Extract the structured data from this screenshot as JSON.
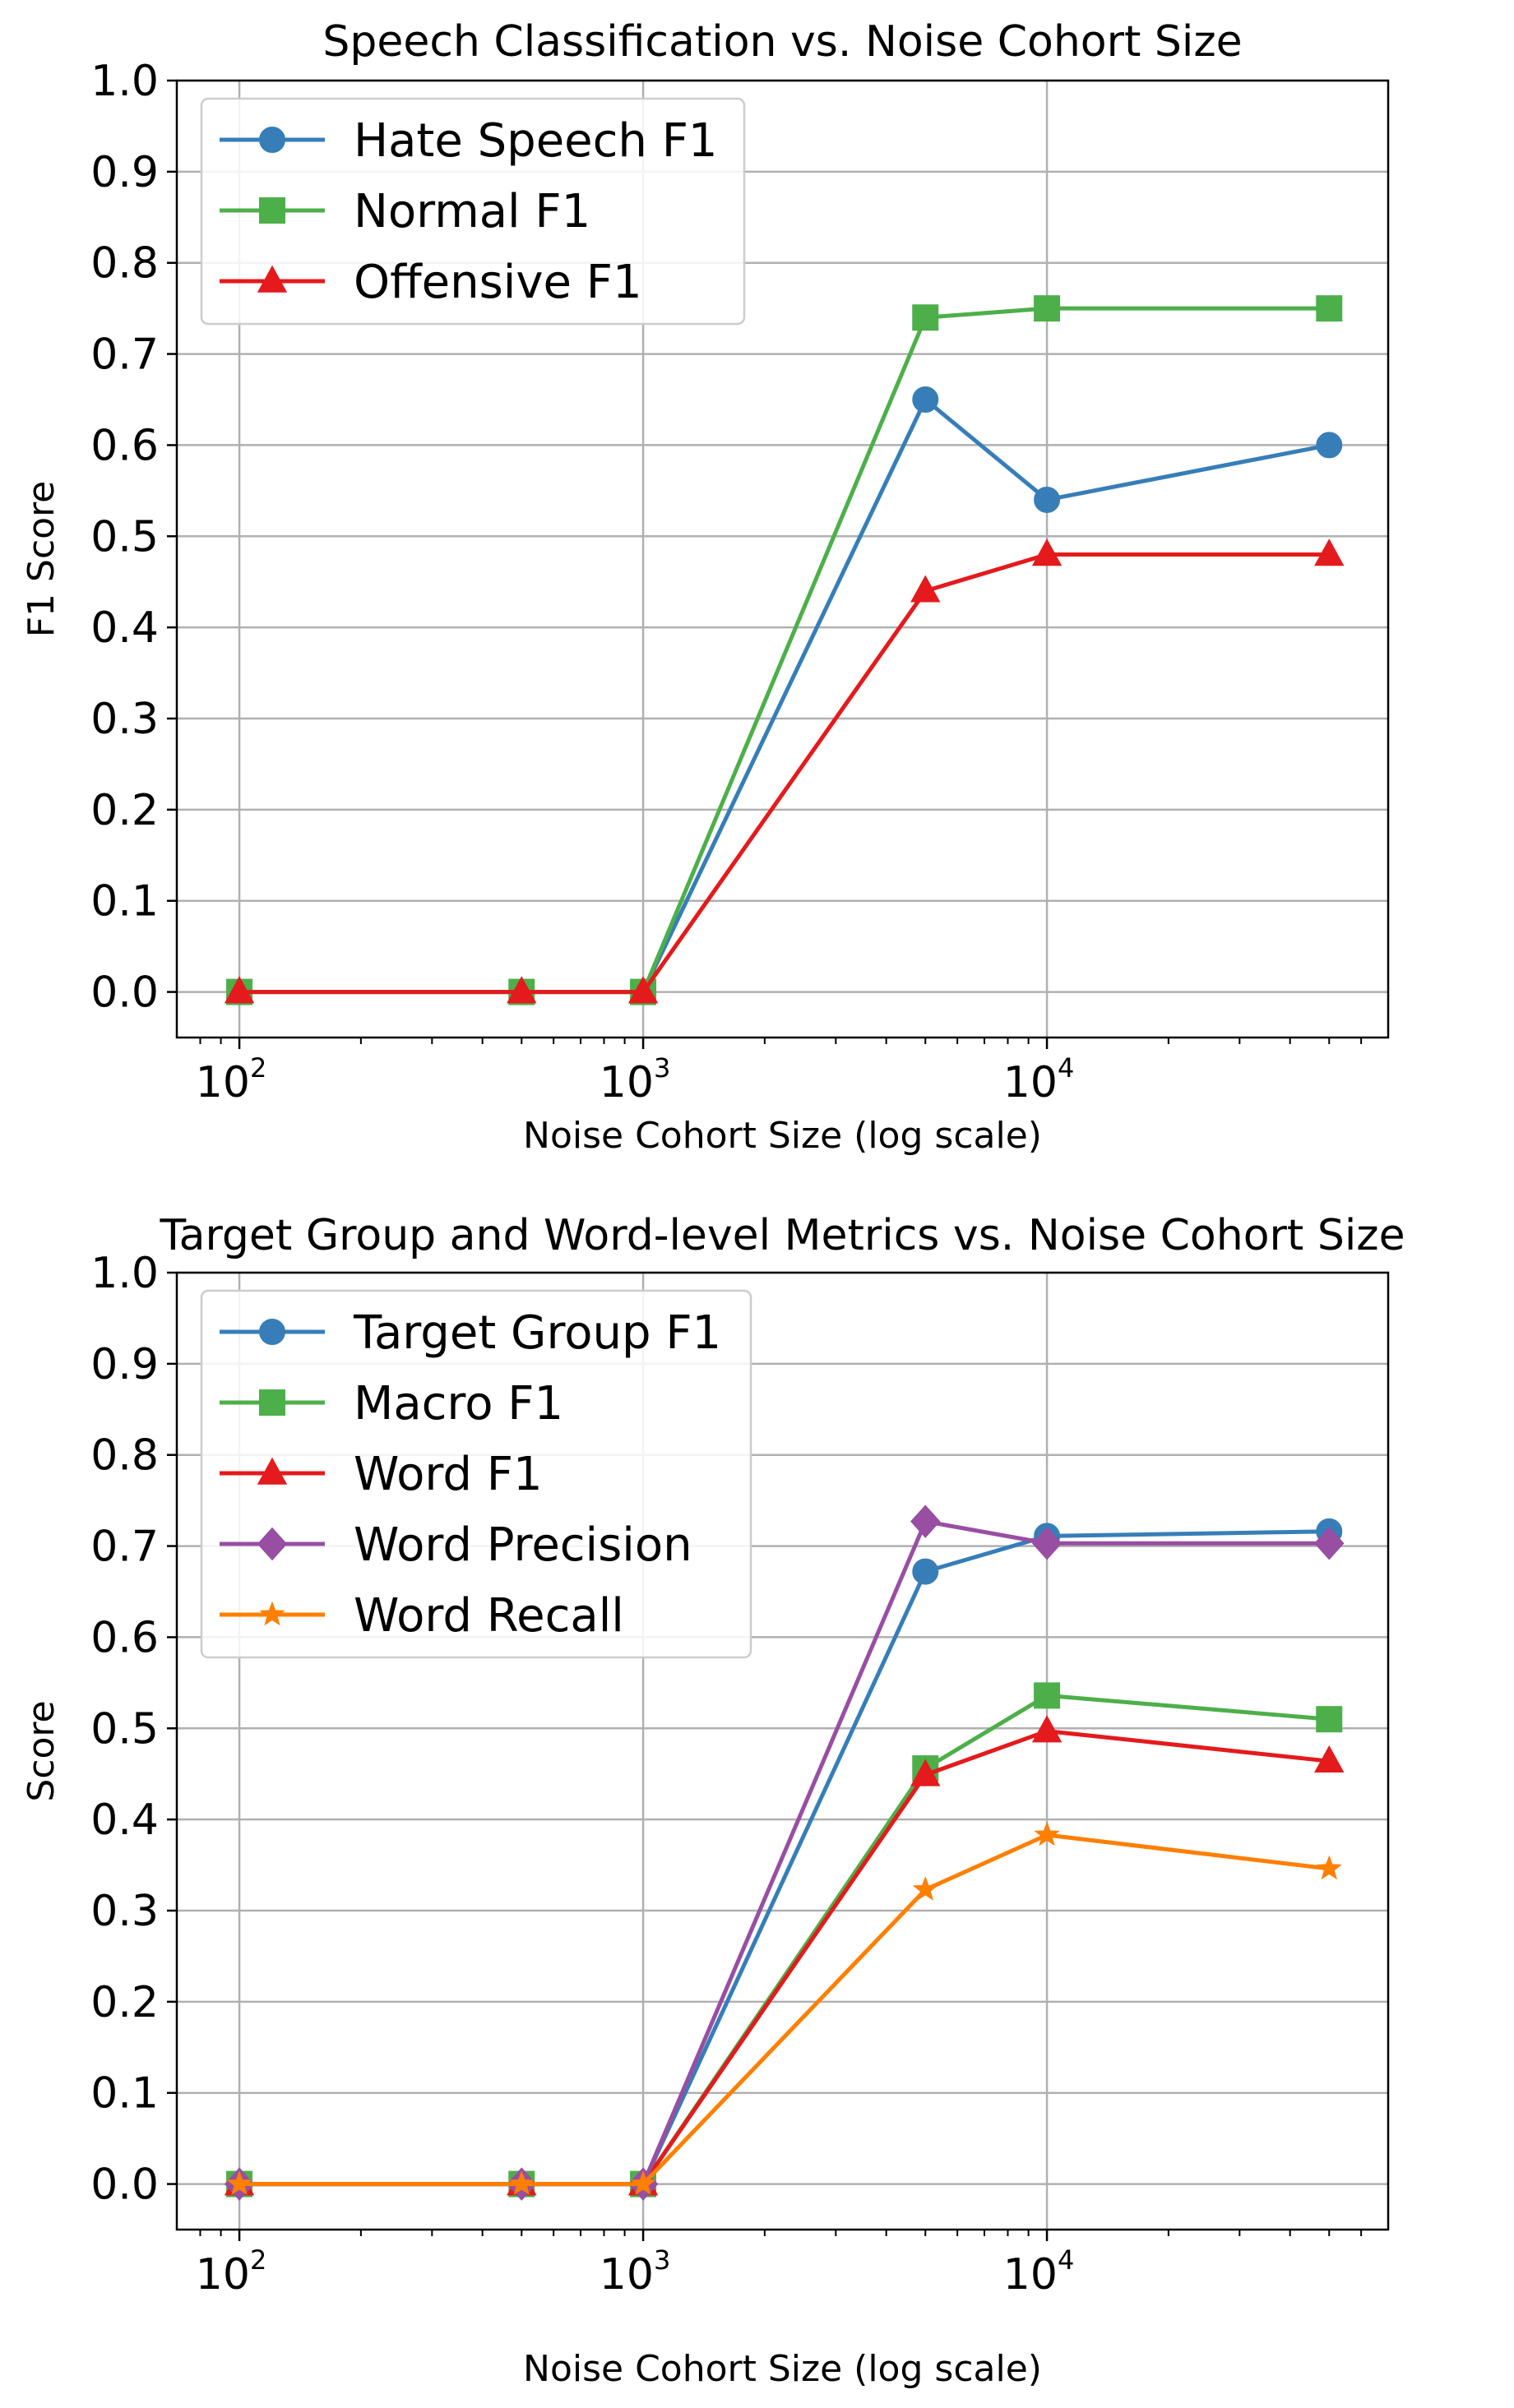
{
  "chart_data": [
    {
      "type": "line",
      "title": "Speech Classification vs. Noise Cohort Size",
      "xlabel": "Noise Cohort Size (log scale)",
      "ylabel": "F1 Score",
      "xscale": "log",
      "xlim": [
        70,
        70000
      ],
      "ylim": [
        -0.05,
        1.0
      ],
      "yticks": [
        "0.0",
        "0.1",
        "0.2",
        "0.3",
        "0.4",
        "0.5",
        "0.6",
        "0.7",
        "0.8",
        "0.9",
        "1.0"
      ],
      "xticks": [
        {
          "base": "10",
          "exp": "2"
        },
        {
          "base": "10",
          "exp": "3"
        },
        {
          "base": "10",
          "exp": "4"
        }
      ],
      "grid": true,
      "legend": "top-left",
      "x": [
        100,
        500,
        1000,
        5000,
        10000,
        50000
      ],
      "series": [
        {
          "name": "Hate Speech F1",
          "color": "#377eb8",
          "marker": "circle",
          "values": [
            0.0,
            0.0,
            0.0,
            0.65,
            0.54,
            0.6
          ]
        },
        {
          "name": "Normal F1",
          "color": "#4daf4a",
          "marker": "square",
          "values": [
            0.0,
            0.0,
            0.0,
            0.74,
            0.75,
            0.75
          ]
        },
        {
          "name": "Offensive F1",
          "color": "#e41a1c",
          "marker": "triangle",
          "values": [
            0.0,
            0.0,
            0.0,
            0.44,
            0.48,
            0.48
          ]
        }
      ]
    },
    {
      "type": "line",
      "title": "Target Group and Word-level Metrics vs. Noise Cohort Size",
      "xlabel": "Noise Cohort Size (log scale)",
      "ylabel": "Score",
      "xscale": "log",
      "xlim": [
        70,
        70000
      ],
      "ylim": [
        -0.05,
        1.0
      ],
      "yticks": [
        "0.0",
        "0.1",
        "0.2",
        "0.3",
        "0.4",
        "0.5",
        "0.6",
        "0.7",
        "0.8",
        "0.9",
        "1.0"
      ],
      "xticks": [
        {
          "base": "10",
          "exp": "2"
        },
        {
          "base": "10",
          "exp": "3"
        },
        {
          "base": "10",
          "exp": "4"
        }
      ],
      "grid": true,
      "legend": "top-left",
      "x": [
        100,
        500,
        1000,
        5000,
        10000,
        50000
      ],
      "series": [
        {
          "name": "Target Group F1",
          "color": "#377eb8",
          "marker": "circle",
          "values": [
            0.0,
            0.0,
            0.0,
            0.672,
            0.711,
            0.716
          ]
        },
        {
          "name": "Macro F1",
          "color": "#4daf4a",
          "marker": "square",
          "values": [
            0.0,
            0.0,
            0.0,
            0.456,
            0.536,
            0.51
          ]
        },
        {
          "name": "Word F1",
          "color": "#e41a1c",
          "marker": "triangle",
          "values": [
            0.0,
            0.0,
            0.0,
            0.449,
            0.497,
            0.464
          ]
        },
        {
          "name": "Word Precision",
          "color": "#984ea3",
          "marker": "diamond",
          "values": [
            0.0,
            0.0,
            0.0,
            0.727,
            0.703,
            0.703
          ]
        },
        {
          "name": "Word Recall",
          "color": "#ff7f00",
          "marker": "star",
          "values": [
            0.0,
            0.0,
            0.0,
            0.323,
            0.383,
            0.346
          ]
        }
      ]
    }
  ]
}
